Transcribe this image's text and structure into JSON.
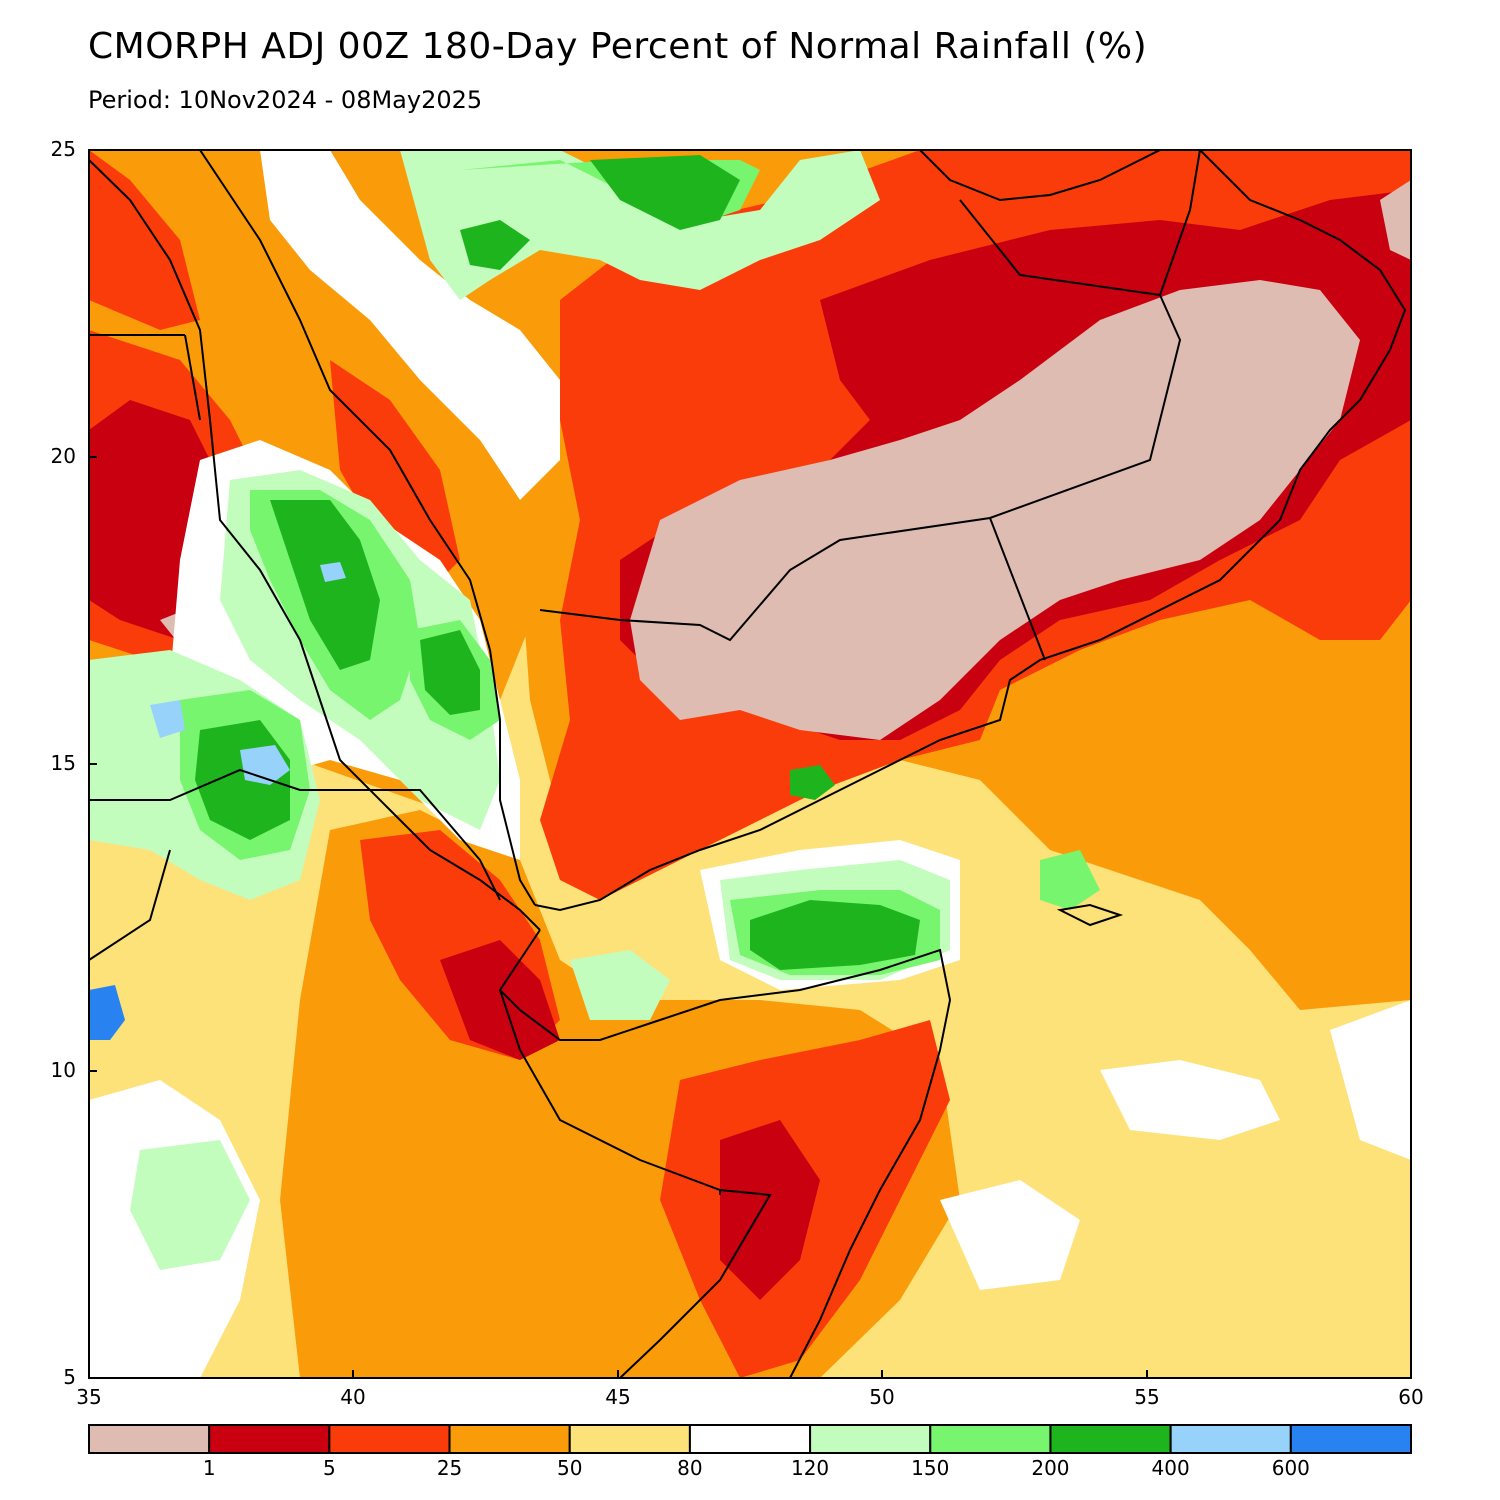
{
  "header": {
    "title": "CMORPH ADJ 00Z 180-Day Percent of Normal Rainfall (%)",
    "period": "Period: 10Nov2024 - 08May2025"
  },
  "map": {
    "lon_range": [
      35,
      60
    ],
    "lat_range": [
      5,
      25
    ],
    "lon_ticks": [
      "35",
      "40",
      "45",
      "50",
      "55",
      "60"
    ],
    "lat_ticks": [
      "5",
      "10",
      "15",
      "20",
      "25"
    ]
  },
  "legend": {
    "colors": [
      "#dfbcb2",
      "#c80010",
      "#fa3c0a",
      "#fa9c0a",
      "#fde27a",
      "#ffffff",
      "#c3fdbd",
      "#78f56e",
      "#1eb41e",
      "#96d2fa",
      "#2882f0"
    ],
    "labels": [
      "1",
      "5",
      "25",
      "50",
      "80",
      "120",
      "150",
      "200",
      "400",
      "600"
    ]
  }
}
